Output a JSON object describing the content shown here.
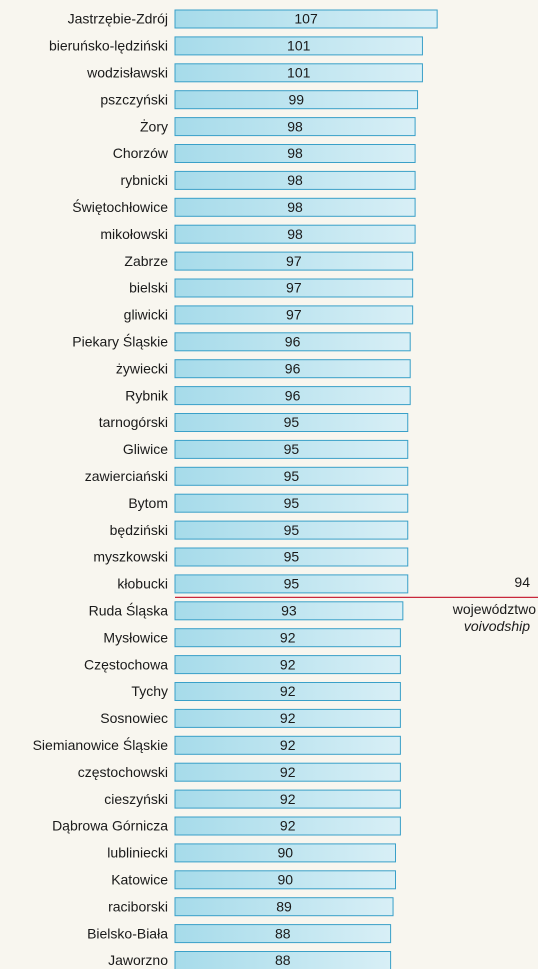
{
  "chart_data": {
    "type": "barh",
    "categories": [
      "Jastrzębie-Zdrój",
      "bieruńsko-lędziński",
      "wodzisławski",
      "pszczyński",
      "Żory",
      "Chorzów",
      "rybnicki",
      "Świętochłowice",
      "mikołowski",
      "Zabrze",
      "bielski",
      "gliwicki",
      "Piekary Śląskie",
      "żywiecki",
      "Rybnik",
      "tarnogórski",
      "Gliwice",
      "zawierciański",
      "Bytom",
      "będziński",
      "myszkowski",
      "kłobucki",
      "Ruda Śląska",
      "Mysłowice",
      "Częstochowa",
      "Tychy",
      "Sosnowiec",
      "Siemianowice Śląskie",
      "częstochowski",
      "cieszyński",
      "Dąbrowa Górnicza",
      "lubliniecki",
      "Katowice",
      "raciborski",
      "Bielsko-Biała",
      "Jaworzno"
    ],
    "values": [
      107,
      101,
      101,
      99,
      98,
      98,
      98,
      98,
      98,
      97,
      97,
      97,
      96,
      96,
      96,
      95,
      95,
      95,
      95,
      95,
      95,
      95,
      93,
      92,
      92,
      92,
      92,
      92,
      92,
      92,
      92,
      90,
      90,
      89,
      88,
      88
    ],
    "color": "#3aa0c8",
    "reference": {
      "value": 94,
      "label": "województwo",
      "label_en": "voivodship",
      "color": "#c8283c"
    }
  }
}
